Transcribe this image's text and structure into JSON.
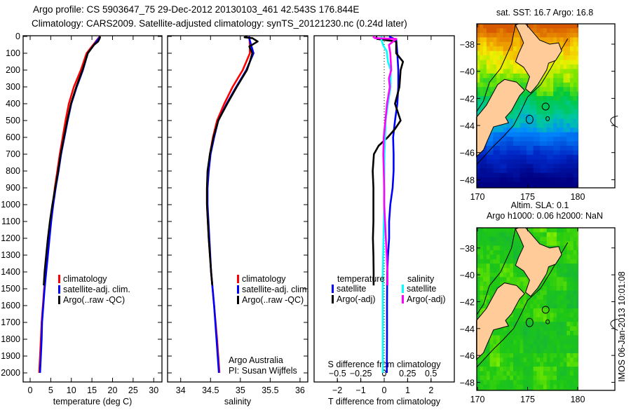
{
  "title": {
    "line1": "Argo profile: CS 5903647_75 29-Dec-2012 20130103_461 42.543S 176.844E",
    "line2": "Climatology: CARS2009. Satellite-adjusted climatology: synTS_20121230.nc (0.24d later)"
  },
  "colors": {
    "climatology": "#ff0000",
    "satellite": "#0000ff",
    "argo": "#000000",
    "s_satellite": "#00ffff",
    "s_argo": "#ff00ff",
    "land": "#ffcc99"
  },
  "depth_axis": {
    "ylim": [
      -4,
      2054
    ],
    "ticks": [
      0,
      100,
      200,
      300,
      400,
      500,
      600,
      700,
      800,
      900,
      1000,
      1100,
      1200,
      1300,
      1400,
      1500,
      1600,
      1700,
      1800,
      1900,
      2000
    ]
  },
  "credit": {
    "line1": "Argo Australia",
    "line2": "PI: Susan Wijffels"
  },
  "watermark": "IMOS 06-Jan-2013 10:01:08",
  "chart_data": [
    {
      "type": "line",
      "id": "temperature",
      "xlabel": "temperature (deg C)",
      "ylabel": "depth",
      "xlim": [
        -1.7,
        32.0
      ],
      "xticks": [
        0,
        5,
        10,
        15,
        20,
        25,
        30
      ],
      "legend": [
        "climatology",
        "satellite-adj. clim.",
        "Argo(..raw -QC)"
      ],
      "series": [
        {
          "name": "climatology",
          "color": "#ff0000",
          "depth": [
            0,
            100,
            200,
            300,
            400,
            500,
            600,
            700,
            800,
            900,
            1000,
            1100,
            1200,
            1300,
            1400,
            1500,
            1600,
            1700,
            1800,
            1900,
            2000
          ],
          "values": [
            16.9,
            13.7,
            12.3,
            10.6,
            9.4,
            8.6,
            7.9,
            7.2,
            6.6,
            6.0,
            5.5,
            5.0,
            4.6,
            4.2,
            3.8,
            3.4,
            3.1,
            2.8,
            2.6,
            2.4,
            2.2
          ]
        },
        {
          "name": "satellite-adj. clim.",
          "color": "#0000ff",
          "depth": [
            0,
            100,
            200,
            300,
            400,
            500,
            600,
            700,
            800,
            900,
            1000,
            1100,
            1200,
            1300,
            1400,
            1500,
            1600,
            1700,
            1800,
            1900,
            2000
          ],
          "values": [
            17.0,
            14.0,
            12.8,
            11.3,
            10.0,
            9.1,
            8.3,
            7.5,
            6.9,
            6.2,
            5.6,
            5.1,
            4.7,
            4.3,
            3.9,
            3.5,
            3.2,
            2.9,
            2.8,
            2.6,
            2.4
          ]
        },
        {
          "name": "Argo(..raw -QC)",
          "color": "#000000",
          "depth": [
            0,
            10,
            30,
            50,
            100,
            200,
            300,
            400,
            500,
            600,
            700,
            800,
            900,
            1000,
            1100,
            1200,
            1300,
            1400,
            1480
          ],
          "values": [
            17.0,
            16.9,
            16.5,
            15.5,
            14.0,
            12.7,
            11.2,
            9.9,
            9.0,
            8.2,
            7.4,
            6.8,
            6.1,
            5.4,
            4.8,
            4.3,
            3.9,
            3.5,
            3.3
          ]
        }
      ]
    },
    {
      "type": "line",
      "id": "salinity",
      "xlabel": "salinity",
      "xlim": [
        33.78,
        36.13
      ],
      "xticks": [
        34,
        34.5,
        35,
        35.5,
        36
      ],
      "legend": [
        "climatology",
        "satellite-adj. clim.",
        "Argo(..raw -QC)"
      ],
      "series": [
        {
          "name": "climatology",
          "color": "#ff0000",
          "depth": [
            0,
            50,
            100,
            150,
            200,
            300,
            400,
            500,
            600,
            700,
            800,
            900,
            1000,
            1200,
            1400,
            1600,
            1800,
            2000
          ],
          "values": [
            35.15,
            35.16,
            35.16,
            35.1,
            35.04,
            34.87,
            34.73,
            34.61,
            34.54,
            34.49,
            34.46,
            34.44,
            34.44,
            34.47,
            34.51,
            34.56,
            34.61,
            34.65
          ]
        },
        {
          "name": "satellite-adj. clim.",
          "color": "#0000ff",
          "depth": [
            0,
            50,
            100,
            150,
            200,
            300,
            400,
            500,
            600,
            700,
            800,
            900,
            1000,
            1200,
            1400,
            1600,
            1800,
            2000
          ],
          "values": [
            35.14,
            35.18,
            35.22,
            35.16,
            35.1,
            34.93,
            34.77,
            34.63,
            34.56,
            34.5,
            34.47,
            34.45,
            34.45,
            34.48,
            34.51,
            34.56,
            34.6,
            34.64
          ]
        },
        {
          "name": "Argo(..raw -QC)",
          "color": "#000000",
          "depth": [
            0,
            5,
            10,
            30,
            60,
            100,
            150,
            200,
            300,
            400,
            500,
            600,
            700,
            800,
            900,
            1000,
            1200,
            1400,
            1480
          ],
          "values": [
            35.12,
            35.07,
            35.2,
            35.29,
            35.15,
            35.2,
            35.16,
            35.11,
            34.94,
            34.78,
            34.63,
            34.55,
            34.49,
            34.45,
            34.44,
            34.44,
            34.47,
            34.51,
            34.53
          ]
        }
      ]
    },
    {
      "type": "line",
      "id": "difference",
      "xlabel": "T difference from climatology",
      "x2label": "S difference from climatology",
      "xlim": [
        -2.99,
        2.99
      ],
      "x2lim": [
        -0.75,
        0.75
      ],
      "xticks": [
        -2,
        -1,
        0,
        1,
        2
      ],
      "x2ticks": [
        -0.5,
        -0.25,
        0,
        0.25,
        0.5
      ],
      "legend_headers": [
        "temperature",
        "salinity"
      ],
      "legend": [
        "satellite",
        "Argo(-adj)",
        "satellite",
        "Argo(-adj)"
      ],
      "series": [
        {
          "name": "T satellite",
          "axis": "T",
          "color": "#0000ff",
          "depth": [
            0,
            20,
            100,
            200,
            300,
            400,
            500,
            600,
            700,
            800,
            900,
            1000,
            1100,
            1200,
            1300,
            1400,
            1600,
            1800,
            2000
          ],
          "values": [
            0.21,
            0.51,
            0.56,
            0.6,
            0.6,
            0.56,
            0.46,
            0.38,
            0.4,
            0.4,
            0.36,
            0.26,
            0.21,
            0.21,
            0.16,
            0.13,
            0.12,
            0.12,
            0.11
          ]
        },
        {
          "name": "T Argo(-adj)",
          "axis": "T",
          "color": "#000000",
          "depth": [
            0,
            15,
            30,
            100,
            150,
            200,
            300,
            400,
            500,
            550,
            600,
            650,
            700,
            800,
            900,
            1000,
            1100,
            1200,
            1300,
            1400,
            1480
          ],
          "values": [
            -0.34,
            -0.3,
            0.51,
            0.51,
            0.8,
            0.7,
            0.65,
            0.46,
            0.7,
            0.46,
            0.15,
            -0.24,
            -0.44,
            -0.49,
            -0.46,
            -0.46,
            -0.46,
            -0.48,
            -0.46,
            -0.45,
            -0.45
          ]
        },
        {
          "name": "S satellite",
          "axis": "S",
          "color": "#00ffff",
          "depth": [
            0,
            20,
            54,
            89,
            150,
            200,
            300,
            400,
            500,
            600,
            700,
            1000,
            1400,
            2000
          ],
          "values": [
            -0.03,
            -0.03,
            -0.01,
            0.028,
            0.04,
            0.07,
            0.068,
            0.04,
            0.015,
            0.01,
            0.002,
            0,
            -0.015,
            -0.015
          ]
        },
        {
          "name": "S Argo(-adj)",
          "axis": "S",
          "color": "#ff00ff",
          "depth": [
            0,
            10,
            15,
            50,
            100,
            200,
            250,
            300,
            400,
            600,
            700,
            900,
            1000,
            1400,
            1480
          ],
          "values": [
            -0.12,
            -0.1,
            0.13,
            0.05,
            0.065,
            0.075,
            0.05,
            0.06,
            0.03,
            -0.005,
            -0.01,
            0.0,
            0.0,
            0.035,
            0.035
          ]
        }
      ]
    },
    {
      "type": "heatmap",
      "id": "sst_map",
      "title": "sat. SST: 16.7 Argo: 16.8",
      "lonlim": [
        170,
        184
      ],
      "latlim": [
        -48.6,
        -36.5
      ],
      "xticks": [
        170,
        175,
        180
      ],
      "yticks": [
        -38,
        -40,
        -42,
        -44,
        -46,
        -48
      ],
      "ytick_labels": [
        "-38",
        "-40",
        "-42",
        "-44",
        "-46",
        "-48"
      ]
    },
    {
      "type": "heatmap",
      "id": "sla_map",
      "title": "Altim. SLA: 0.1",
      "subtitle": "Argo h1000: 0.06 h2000: NaN",
      "lonlim": [
        170,
        184
      ],
      "latlim": [
        -48.6,
        -36.5
      ],
      "xticks": [
        170,
        175,
        180
      ],
      "yticks": [
        -38,
        -40,
        -42,
        -44,
        -46,
        -48
      ],
      "ytick_labels": [
        "-38",
        "-40",
        "-42",
        "-44",
        "-46",
        "-48"
      ]
    }
  ]
}
